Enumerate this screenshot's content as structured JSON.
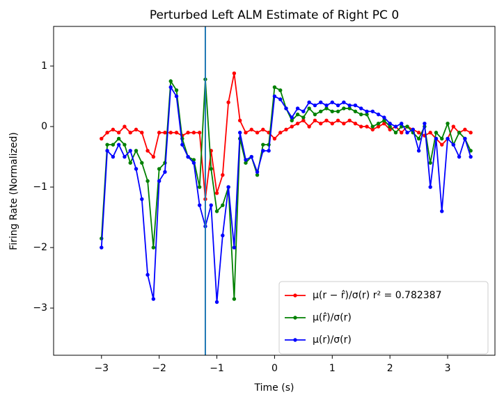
{
  "chart_data": {
    "type": "line",
    "title": "Perturbed Left ALM Estimate of Right PC 0",
    "x_label": "Time (s)",
    "y_label": "Firing Rate (Normalized)",
    "x": [
      -3.0,
      -2.9,
      -2.8,
      -2.7,
      -2.6,
      -2.5,
      -2.4,
      -2.3,
      -2.2,
      -2.1,
      -2.0,
      -1.9,
      -1.8,
      -1.7,
      -1.6,
      -1.5,
      -1.4,
      -1.3,
      -1.2,
      -1.1,
      -1.0,
      -0.9,
      -0.8,
      -0.7,
      -0.6,
      -0.5,
      -0.4,
      -0.3,
      -0.2,
      -0.1,
      0.0,
      0.1,
      0.2,
      0.3,
      0.4,
      0.5,
      0.6,
      0.7,
      0.8,
      0.9,
      1.0,
      1.1,
      1.2,
      1.3,
      1.4,
      1.5,
      1.6,
      1.7,
      1.8,
      1.9,
      2.0,
      2.1,
      2.2,
      2.3,
      2.4,
      2.5,
      2.6,
      2.7,
      2.8,
      2.9,
      3.0,
      3.1,
      3.2,
      3.3,
      3.4
    ],
    "series": [
      {
        "name": "μ(r − r̂)/σ(r) r² = 0.782387",
        "color": "#ff0000",
        "values": [
          -0.2,
          -0.1,
          -0.05,
          -0.1,
          0,
          -0.1,
          -0.05,
          -0.1,
          -0.4,
          -0.5,
          -0.1,
          -0.1,
          -0.1,
          -0.1,
          -0.15,
          -0.1,
          -0.1,
          -0.1,
          -1.2,
          -0.4,
          -1.1,
          -0.8,
          0.4,
          0.88,
          0.1,
          -0.1,
          -0.05,
          -0.1,
          -0.05,
          -0.1,
          -0.2,
          -0.1,
          -0.05,
          0,
          0.05,
          0.1,
          0,
          0.1,
          0.05,
          0.1,
          0.05,
          0.1,
          0.05,
          0.1,
          0.05,
          0,
          0,
          -0.05,
          0,
          0.05,
          -0.05,
          0,
          -0.1,
          0,
          -0.05,
          -0.1,
          -0.15,
          -0.1,
          -0.2,
          -0.3,
          -0.2,
          0,
          -0.1,
          -0.05,
          -0.1
        ]
      },
      {
        "name": "μ(r̂)/σ(r)",
        "color": "#008000",
        "values": [
          -1.85,
          -0.3,
          -0.3,
          -0.2,
          -0.3,
          -0.6,
          -0.4,
          -0.6,
          -0.9,
          -2.0,
          -0.7,
          -0.6,
          0.75,
          0.6,
          -0.2,
          -0.5,
          -0.55,
          -1.0,
          0.78,
          -0.7,
          -1.4,
          -1.3,
          -1.0,
          -2.85,
          -0.2,
          -0.6,
          -0.5,
          -0.8,
          -0.3,
          -0.3,
          0.65,
          0.6,
          0.3,
          0.1,
          0.2,
          0.15,
          0.3,
          0.2,
          0.25,
          0.3,
          0.25,
          0.25,
          0.3,
          0.3,
          0.25,
          0.2,
          0.2,
          0,
          0.05,
          0.1,
          0,
          -0.1,
          0,
          0,
          -0.1,
          -0.2,
          0,
          -0.6,
          -0.1,
          -0.2,
          0.05,
          -0.3,
          -0.1,
          -0.2,
          -0.4
        ]
      },
      {
        "name": "μ(r)/σ(r)",
        "color": "#0000ff",
        "values": [
          -2.0,
          -0.4,
          -0.5,
          -0.3,
          -0.5,
          -0.4,
          -0.7,
          -1.2,
          -2.45,
          -2.85,
          -0.9,
          -0.75,
          0.65,
          0.5,
          -0.3,
          -0.5,
          -0.6,
          -1.3,
          -1.65,
          -1.3,
          -2.9,
          -1.8,
          -1.0,
          -2.0,
          -0.1,
          -0.55,
          -0.5,
          -0.75,
          -0.4,
          -0.4,
          0.5,
          0.45,
          0.3,
          0.15,
          0.3,
          0.25,
          0.4,
          0.35,
          0.4,
          0.35,
          0.4,
          0.35,
          0.4,
          0.35,
          0.35,
          0.3,
          0.25,
          0.25,
          0.2,
          0.15,
          0.05,
          0,
          0.05,
          -0.1,
          -0.05,
          -0.4,
          0.05,
          -1.0,
          -0.2,
          -1.4,
          -0.2,
          -0.3,
          -0.5,
          -0.2,
          -0.5
        ]
      }
    ],
    "vline": {
      "x": -1.2,
      "color": "#1f77b4"
    },
    "xlim": [
      -3.83,
      3.82
    ],
    "ylim": [
      -3.78,
      1.655
    ],
    "xticks": [
      {
        "value": -3,
        "label": "−3"
      },
      {
        "value": -2,
        "label": "−2"
      },
      {
        "value": -1,
        "label": "−1"
      },
      0,
      1,
      2,
      3
    ],
    "yticks": [
      {
        "value": -3,
        "label": "−3"
      },
      {
        "value": -2,
        "label": "−2"
      },
      {
        "value": -1,
        "label": "−1"
      },
      0,
      1
    ],
    "legend": "lower right",
    "grid": false
  }
}
